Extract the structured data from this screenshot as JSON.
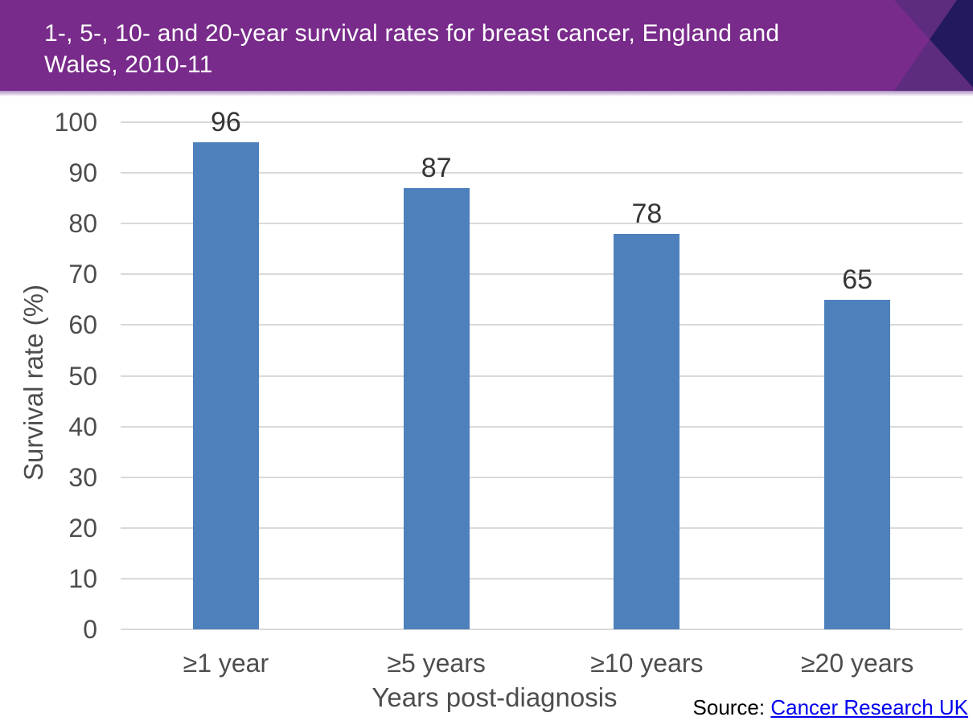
{
  "header": {
    "title_lines": [
      "1-, 5-, 10- and 20-year survival rates for breast cancer, England and",
      "Wales, 2010-11"
    ],
    "bg_color": "#782b8a",
    "accent_mid_color": "#5d2c7e",
    "accent_dark_color": "#221a5c"
  },
  "chart_data": {
    "type": "bar",
    "title": "1-, 5-, 10- and 20-year survival rates for breast cancer, England and Wales, 2010-11",
    "categories": [
      "≥1 year",
      "≥5 years",
      "≥10 years",
      "≥20 years"
    ],
    "values": [
      96,
      87,
      78,
      65
    ],
    "xlabel": "Years post-diagnosis",
    "ylabel": "Survival rate (%)",
    "ylim": [
      0,
      100
    ],
    "ytick_step": 10,
    "grid": true,
    "legend": "none",
    "bar_color": "#4e81bc",
    "gridline_color": "#d9d9d9",
    "axis_label_color": "#4d4d4d",
    "value_label_color": "#363636"
  },
  "source": {
    "prefix": "Source: ",
    "link_text": "Cancer Research UK",
    "link_color": "#0000ee"
  }
}
